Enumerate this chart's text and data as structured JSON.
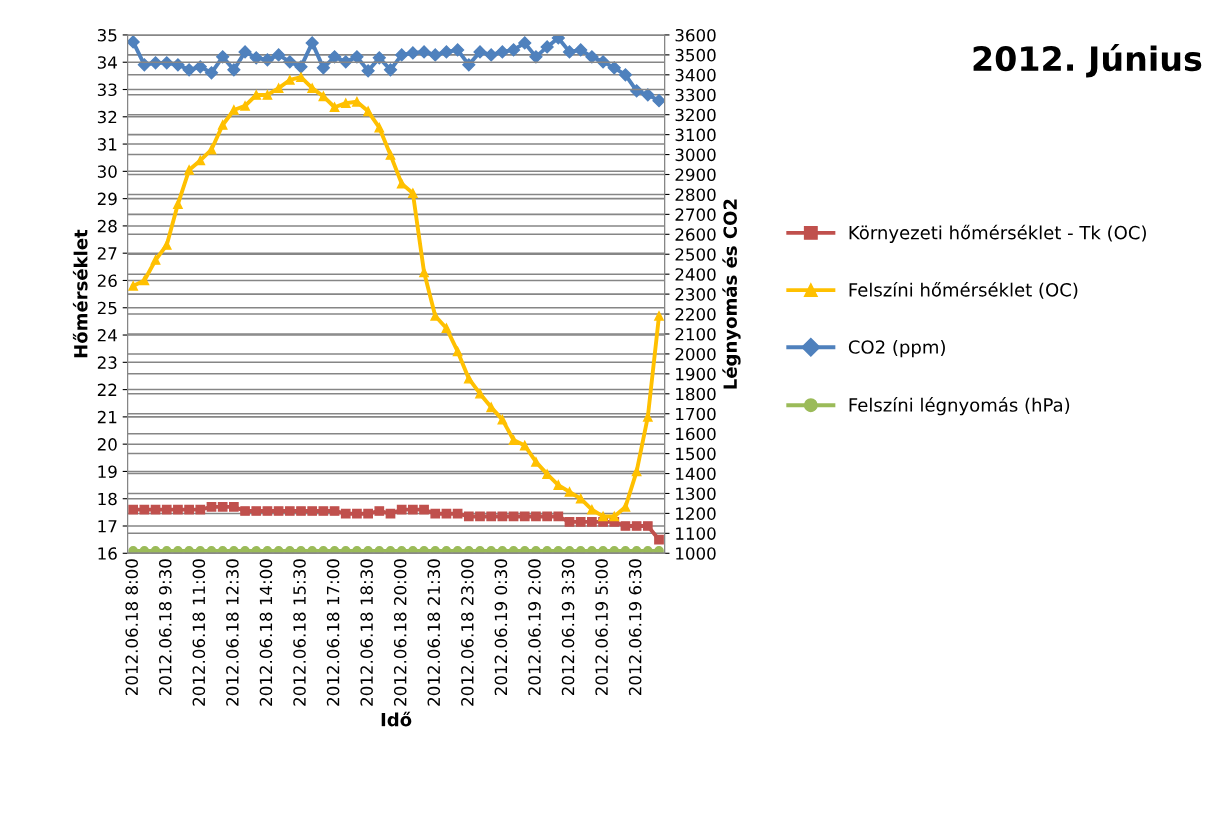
{
  "chart_data": {
    "type": "line",
    "title": "2012. Június",
    "xlabel": "Idő",
    "ylabel": "Hőmérséklet",
    "y2label": "Légnyomás és CO2",
    "categories": [
      "2012.06.18 8:00",
      null,
      null,
      "2012.06.18 9:30",
      null,
      null,
      "2012.06.18 11:00",
      null,
      null,
      "2012.06.18 12:30",
      null,
      null,
      "2012.06.18 14:00",
      null,
      null,
      "2012.06.18 15:30",
      null,
      null,
      "2012.06.18 17:00",
      null,
      null,
      "2012.06.18 18:30",
      null,
      null,
      "2012.06.18 20:00",
      null,
      null,
      "2012.06.18 21:30",
      null,
      null,
      "2012.06.18 23:00",
      null,
      null,
      "2012.06.19 0:30",
      null,
      null,
      "2012.06.19 2:00",
      null,
      null,
      "2012.06.19 3:30",
      null,
      null,
      "2012.06.19 5:00",
      null,
      null,
      "2012.06.19 6:30",
      null,
      null
    ],
    "series": [
      {
        "name": "Környezeti hőmérséklet - Tk (OC)",
        "color": "#c0504d",
        "marker": "square",
        "values": [
          17.6,
          17.6,
          17.6,
          17.6,
          17.6,
          17.6,
          17.6,
          17.7,
          17.7,
          17.7,
          17.55,
          17.55,
          17.55,
          17.55,
          17.55,
          17.55,
          17.55,
          17.55,
          17.55,
          17.45,
          17.45,
          17.45,
          17.55,
          17.45,
          17.6,
          17.6,
          17.6,
          17.45,
          17.45,
          17.45,
          17.35,
          17.35,
          17.35,
          17.35,
          17.35,
          17.35,
          17.35,
          17.35,
          17.35,
          17.15,
          17.15,
          17.15,
          17.15,
          17.15,
          17.0,
          17.0,
          17.0,
          16.5
        ]
      },
      {
        "name": "Felszíni hőmérséklet (OC)",
        "color": "#ffc000",
        "marker": "triangle",
        "values": [
          25.8,
          26.0,
          26.75,
          27.3,
          28.8,
          30.05,
          30.4,
          30.8,
          31.7,
          32.25,
          32.4,
          32.8,
          32.8,
          33.05,
          33.35,
          33.45,
          33.05,
          32.75,
          32.35,
          32.5,
          32.55,
          32.2,
          31.6,
          30.6,
          29.55,
          29.2,
          26.3,
          24.7,
          24.25,
          23.4,
          22.4,
          21.85,
          21.35,
          20.9,
          20.15,
          19.95,
          19.35,
          18.9,
          18.5,
          18.25,
          18.0,
          17.6,
          17.35,
          17.35,
          17.7,
          19.0,
          21.0,
          24.7
        ]
      },
      {
        "name": "CO2 (ppm)",
        "color": "#4f81bd",
        "marker": "diamond",
        "axis": "y2",
        "values": [
          3565,
          3450,
          3460,
          3460,
          3450,
          3425,
          3440,
          3410,
          3490,
          3425,
          3515,
          3485,
          3475,
          3500,
          3465,
          3440,
          3560,
          3435,
          3490,
          3465,
          3490,
          3420,
          3485,
          3425,
          3500,
          3510,
          3515,
          3500,
          3515,
          3525,
          3450,
          3515,
          3500,
          3515,
          3525,
          3560,
          3490,
          3540,
          3585,
          3515,
          3525,
          3490,
          3465,
          3435,
          3400,
          3320,
          3300,
          3270
        ]
      },
      {
        "name": "Felszíni légnyomás (hPa)",
        "color": "#9bbb59",
        "marker": "circle",
        "axis": "y2",
        "values": [
          1012,
          1012,
          1012,
          1012,
          1012,
          1012,
          1012,
          1012,
          1012,
          1012,
          1012,
          1012,
          1012,
          1012,
          1012,
          1012,
          1012,
          1012,
          1012,
          1012,
          1012,
          1012,
          1012,
          1012,
          1012,
          1012,
          1012,
          1012,
          1012,
          1012,
          1012,
          1012,
          1012,
          1012,
          1012,
          1012,
          1012,
          1012,
          1012,
          1012,
          1012,
          1012,
          1012,
          1012,
          1012,
          1012,
          1012,
          1012
        ]
      }
    ],
    "ylim": [
      16,
      35
    ],
    "yticks": [
      16,
      17,
      18,
      19,
      20,
      21,
      22,
      23,
      24,
      25,
      26,
      27,
      28,
      29,
      30,
      31,
      32,
      33,
      34,
      35
    ],
    "y2lim": [
      1000,
      3600
    ],
    "y2ticks": [
      1000,
      1100,
      1200,
      1300,
      1400,
      1500,
      1600,
      1700,
      1800,
      1900,
      2000,
      2100,
      2200,
      2300,
      2400,
      2500,
      2600,
      2700,
      2800,
      2900,
      3000,
      3100,
      3200,
      3300,
      3400,
      3500,
      3600
    ],
    "grid": true,
    "legend": "right",
    "line_style": "solid"
  }
}
